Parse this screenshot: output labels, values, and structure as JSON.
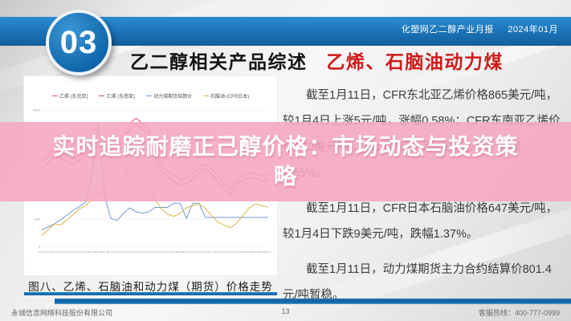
{
  "header": {
    "section_number": "03",
    "title_black": "乙二醇相关产品综述",
    "title_red": "乙烯、石脑油动力煤",
    "report_label": "化塑网乙二醇产业月报",
    "report_date": "2024年01月"
  },
  "overlay": {
    "title": "实时追踪耐磨正己醇价格：市场动态与投资策略",
    "bg_color": "#f5a6c1"
  },
  "main": {
    "paragraphs": [
      "截至1月11日，CFR东北亚乙烯价格865美元/吨，较1月4日上涨5元/吨，涨幅0.58%；CFR东南亚乙烯价格870美元/吨，较1月4日上涨20美元/吨，涨幅2.35%。",
      "截至1月11日，CFR日本石脑油价格647美元/吨，较1月4日下跌9美元/吨，跌幅1.37%。",
      "截至1月11日，动力煤期货主力合约结算价801.4元/吨暂稳。"
    ],
    "chart_caption": "图八、乙烯、石脑油和动力煤（期货）价格走势"
  },
  "footer": {
    "company": "永诚信息网络科技股份有限公司",
    "page_number": "13",
    "hotline_label": "客服热线：",
    "hotline_number": "400-777-0999"
  },
  "chart_data": {
    "type": "line",
    "title": "图八、乙烯、石脑油和动力煤（期货）价格走势",
    "xlabel": "",
    "ylabel": "",
    "legend_position": "top",
    "grid": true,
    "ylim": [
      0,
      2000
    ],
    "yticks": [
      "0",
      "400",
      "800",
      "1200",
      "1600",
      "2000"
    ],
    "categories": [
      "2021/1",
      "2021/2",
      "2021/3",
      "2021/4",
      "2021/5",
      "2021/6",
      "2021/7",
      "2021/8",
      "2021/9",
      "2021/10",
      "2021/11",
      "2021/12",
      "2022/1",
      "2022/2",
      "2022/3",
      "2022/4",
      "2022/5",
      "2022/6",
      "2022/7",
      "2022/8",
      "2022/9",
      "2022/10",
      "2022/11",
      "2022/12",
      "2023/1",
      "2023/2",
      "2023/3",
      "2023/4",
      "2023/5",
      "2023/6",
      "2023/7",
      "2023/8",
      "2023/9",
      "2023/10",
      "2023/11",
      "2023/12",
      "2024/1"
    ],
    "series": [
      {
        "name": "乙烯 (东北亚)",
        "color": "#e4575c",
        "band": [
          0.06,
          0.58
        ],
        "values": [
          980,
          1020,
          1080,
          1050,
          1020,
          1000,
          1030,
          1070,
          1110,
          1150,
          1090,
          1060,
          1120,
          1180,
          1280,
          1320,
          1280,
          1240,
          1060,
          950,
          900,
          870,
          830,
          850,
          880,
          930,
          960,
          920,
          860,
          800,
          760,
          830,
          870,
          890,
          880,
          870,
          865
        ]
      },
      {
        "name": "乙烯 (东南亚)",
        "color": "#b2585f",
        "band": [
          0.1,
          0.62
        ],
        "values": [
          950,
          990,
          1050,
          1030,
          1000,
          980,
          1010,
          1050,
          1090,
          1120,
          1060,
          1040,
          1100,
          1160,
          1250,
          1290,
          1250,
          1210,
          1040,
          930,
          890,
          860,
          820,
          840,
          870,
          920,
          950,
          910,
          850,
          795,
          755,
          825,
          865,
          885,
          875,
          855,
          870
        ]
      },
      {
        "name": "动力煤期货结算价",
        "color": "#6f9cce",
        "band": [
          0.1,
          0.88
        ],
        "values": [
          670,
          700,
          735,
          775,
          825,
          875,
          915,
          960,
          1260,
          1780,
          1020,
          790,
          770,
          845,
          900,
          860,
          845,
          860,
          905,
          905,
          905,
          950,
          950,
          790,
          950,
          950,
          801.4,
          801.4,
          801.4,
          801.4,
          801.4,
          801.4,
          801.4,
          801.4,
          801.4,
          801.4,
          801.4
        ]
      },
      {
        "name": "石脑油 (CFR日本)",
        "color": "#d9b64a",
        "band": [
          0.4,
          0.92
        ],
        "values": [
          500,
          530,
          560,
          555,
          580,
          610,
          640,
          655,
          690,
          730,
          710,
          700,
          740,
          790,
          870,
          820,
          790,
          750,
          690,
          640,
          610,
          600,
          615,
          645,
          655,
          665,
          640,
          605,
          570,
          555,
          540,
          565,
          605,
          645,
          665,
          655,
          647
        ]
      }
    ]
  }
}
